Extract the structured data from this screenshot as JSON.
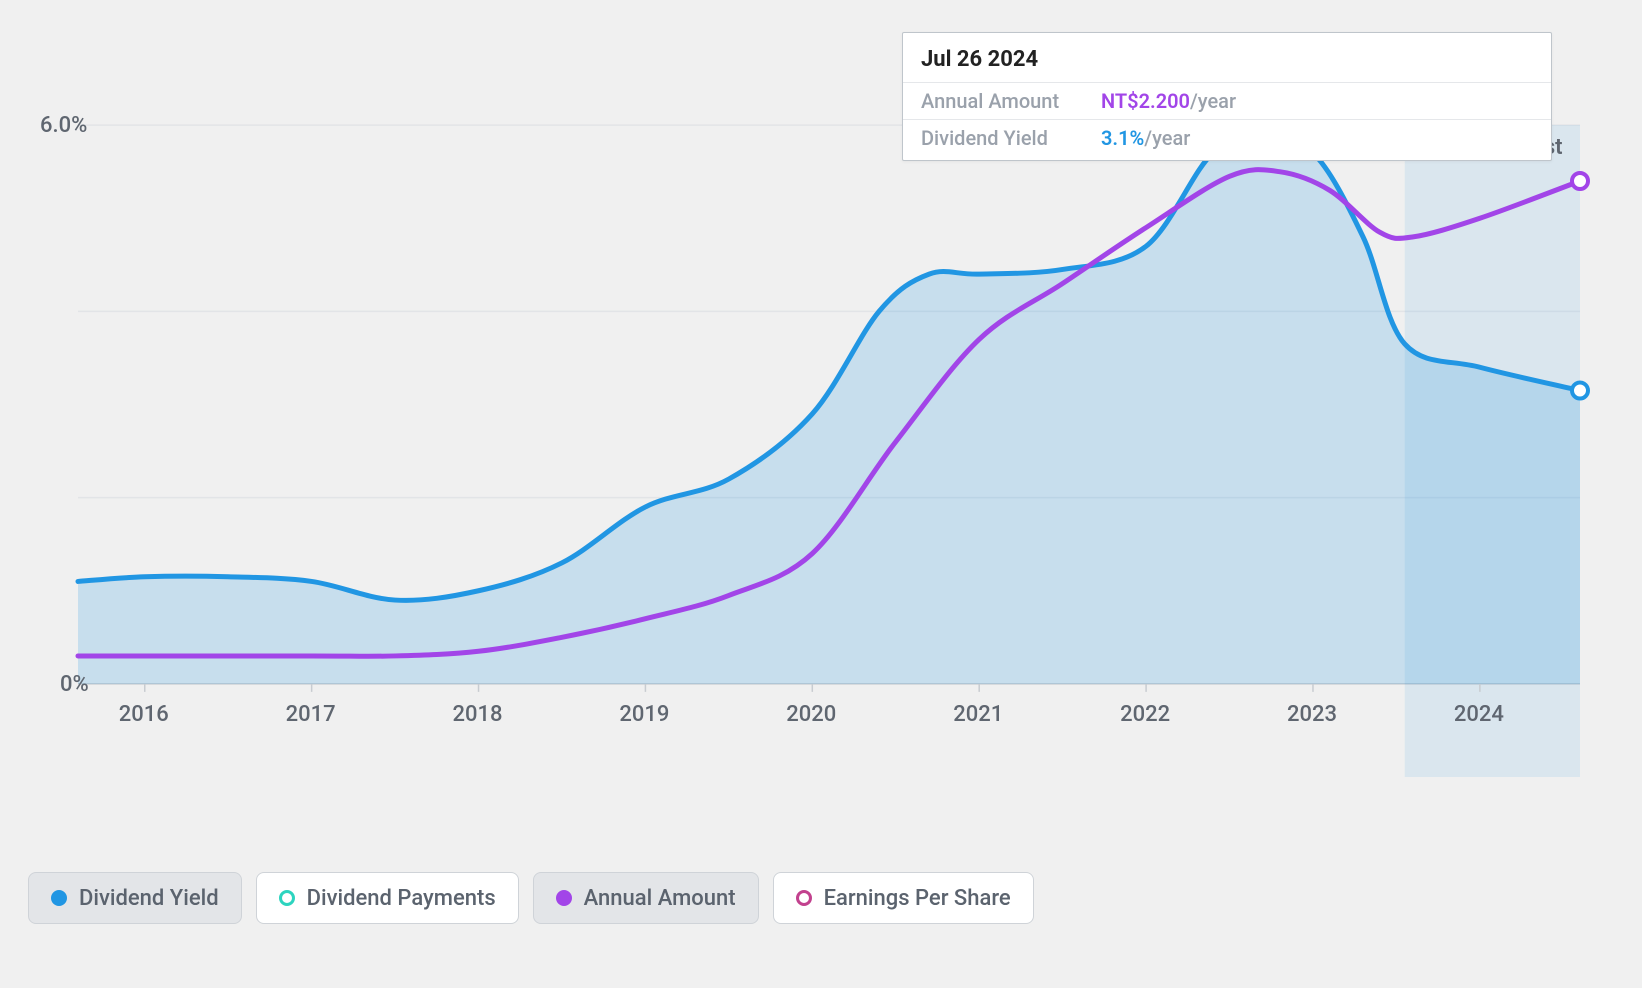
{
  "chart": {
    "type": "area-line",
    "background_color": "#f0f0f0",
    "grid_color": "#e2e4e7",
    "baseline_color": "#c8ccd1",
    "ytick_max_label": "6.0%",
    "ytick_zero_label": "0%",
    "ylim": [
      -1,
      7
    ],
    "yticks": [
      0,
      6
    ],
    "xlim": [
      2015.6,
      2024.6
    ],
    "xticks": [
      "2016",
      "2017",
      "2018",
      "2019",
      "2020",
      "2021",
      "2022",
      "2023",
      "2024"
    ],
    "forecast_start_x": 2023.55,
    "past_label": "Past",
    "series": {
      "dividend_yield": {
        "label": "Dividend Yield",
        "color": "#2196e3",
        "fill_color": "#2196e333",
        "line_width": 5,
        "active": true,
        "marker_end": true,
        "points": [
          [
            2015.6,
            1.1
          ],
          [
            2016.0,
            1.15
          ],
          [
            2016.5,
            1.15
          ],
          [
            2017.0,
            1.1
          ],
          [
            2017.5,
            0.9
          ],
          [
            2018.0,
            1.0
          ],
          [
            2018.5,
            1.3
          ],
          [
            2019.0,
            1.9
          ],
          [
            2019.5,
            2.2
          ],
          [
            2020.0,
            2.9
          ],
          [
            2020.4,
            4.0
          ],
          [
            2020.7,
            4.4
          ],
          [
            2021.0,
            4.4
          ],
          [
            2021.5,
            4.45
          ],
          [
            2022.0,
            4.7
          ],
          [
            2022.4,
            5.7
          ],
          [
            2022.7,
            5.8
          ],
          [
            2023.0,
            5.7
          ],
          [
            2023.3,
            4.8
          ],
          [
            2023.55,
            3.65
          ],
          [
            2024.0,
            3.4
          ],
          [
            2024.6,
            3.15
          ]
        ]
      },
      "annual_amount": {
        "label": "Annual Amount",
        "color": "#a245e8",
        "line_width": 5,
        "active": true,
        "marker_end": true,
        "points": [
          [
            2015.6,
            0.3
          ],
          [
            2016.0,
            0.3
          ],
          [
            2017.0,
            0.3
          ],
          [
            2017.5,
            0.3
          ],
          [
            2018.0,
            0.35
          ],
          [
            2018.5,
            0.5
          ],
          [
            2019.0,
            0.7
          ],
          [
            2019.5,
            0.95
          ],
          [
            2020.0,
            1.4
          ],
          [
            2020.5,
            2.6
          ],
          [
            2021.0,
            3.7
          ],
          [
            2021.5,
            4.3
          ],
          [
            2022.0,
            4.9
          ],
          [
            2022.5,
            5.45
          ],
          [
            2022.8,
            5.5
          ],
          [
            2023.1,
            5.3
          ],
          [
            2023.4,
            4.85
          ],
          [
            2023.6,
            4.8
          ],
          [
            2024.0,
            5.0
          ],
          [
            2024.6,
            5.4
          ]
        ]
      },
      "dividend_payments": {
        "label": "Dividend Payments",
        "color": "#2dd4bf",
        "line_width": 5,
        "active": false,
        "hollow_marker": true
      },
      "earnings_per_share": {
        "label": "Earnings Per Share",
        "color": "#c2418e",
        "line_width": 5,
        "active": false,
        "hollow_marker": true
      }
    },
    "area_forecast_fill": "#2196e31a"
  },
  "tooltip": {
    "date": "Jul 26 2024",
    "rows": [
      {
        "label": "Annual Amount",
        "value": "NT$2.200",
        "unit": "/year",
        "color": "#a245e8"
      },
      {
        "label": "Dividend Yield",
        "value": "3.1%",
        "unit": "/year",
        "color": "#2196e3"
      }
    ]
  },
  "legend": [
    {
      "key": "dividend_yield",
      "marker_style": "solid",
      "marker_color": "#2196e3"
    },
    {
      "key": "dividend_payments",
      "marker_style": "hollow",
      "marker_color": "#2dd4bf"
    },
    {
      "key": "annual_amount",
      "marker_style": "solid",
      "marker_color": "#a245e8"
    },
    {
      "key": "earnings_per_share",
      "marker_style": "hollow",
      "marker_color": "#c2418e"
    }
  ],
  "dimensions": {
    "tick_font_size": 22,
    "tooltip_date_font_size": 22,
    "legend_font_size": 22
  }
}
